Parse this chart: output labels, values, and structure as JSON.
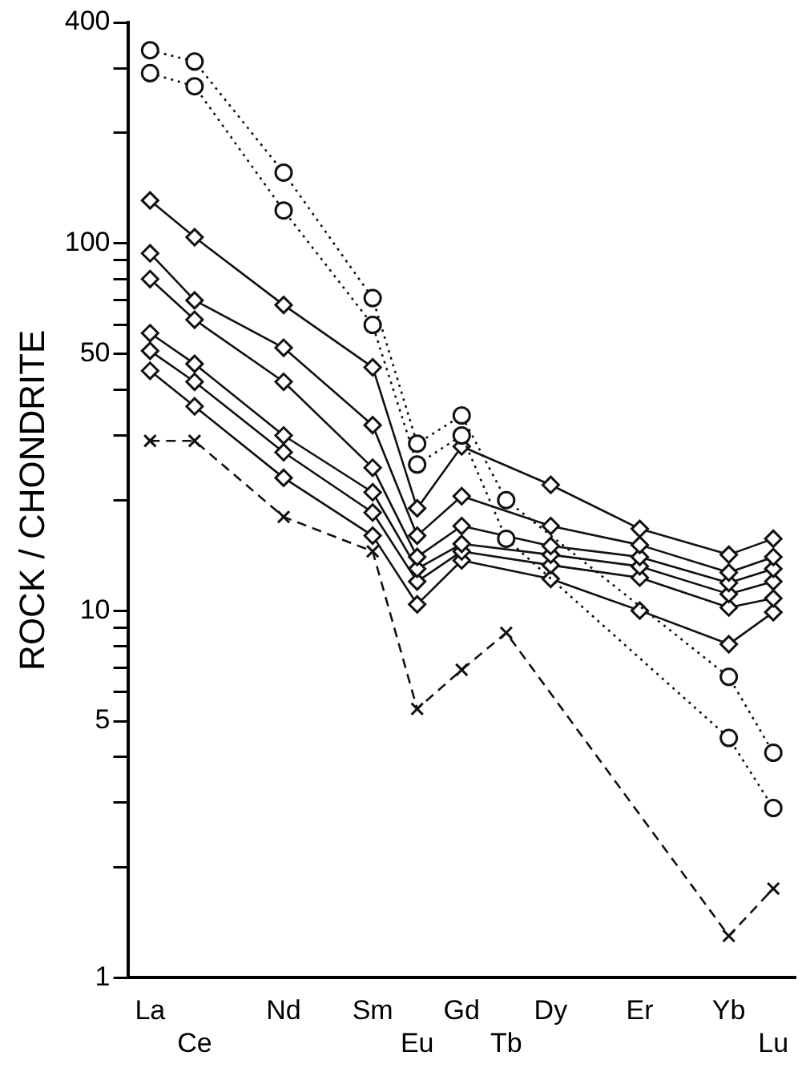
{
  "chart_data": {
    "type": "line",
    "ylabel": "ROCK / CHONDRITE",
    "log": "y",
    "grid": false,
    "legend": false,
    "categories": [
      "La",
      "Ce",
      null,
      "Nd",
      null,
      "Sm",
      "Eu",
      "Gd",
      "Tb",
      "Dy",
      null,
      "Er",
      null,
      "Yb",
      "Lu"
    ],
    "ylim": [
      1,
      400
    ],
    "yticks": [
      1,
      {
        "value": 2,
        "label": null
      },
      {
        "value": 3,
        "label": null
      },
      {
        "value": 4,
        "label": null
      },
      5,
      {
        "value": 6,
        "label": null
      },
      {
        "value": 7,
        "label": null
      },
      {
        "value": 8,
        "label": null
      },
      {
        "value": 9,
        "label": null
      },
      10,
      {
        "value": 20,
        "label": null
      },
      {
        "value": 30,
        "label": null
      },
      {
        "value": 40,
        "label": null
      },
      50,
      {
        "value": 60,
        "label": null
      },
      {
        "value": 70,
        "label": null
      },
      {
        "value": 80,
        "label": null
      },
      {
        "value": 90,
        "label": null
      },
      100,
      {
        "value": 200,
        "label": null
      },
      {
        "value": 300,
        "label": null
      },
      400
    ],
    "series": [
      {
        "color": "#111111",
        "marker": "circle",
        "line_style": "dotted",
        "values": [
          336,
          313,
          null,
          156,
          null,
          71,
          28.5,
          34,
          20,
          null,
          null,
          null,
          null,
          6.6,
          4.1
        ]
      },
      {
        "color": "#111111",
        "marker": "circle",
        "line_style": "dotted",
        "values": [
          291,
          268,
          null,
          123,
          null,
          60,
          25,
          30,
          15.7,
          null,
          null,
          null,
          null,
          4.5,
          2.9
        ]
      },
      {
        "color": "#111111",
        "marker": "diamond",
        "line_style": "solid",
        "values": [
          131,
          104,
          null,
          68,
          null,
          46,
          19,
          28,
          null,
          22,
          null,
          16.7,
          null,
          14.2,
          15.7
        ]
      },
      {
        "color": "#111111",
        "marker": "diamond",
        "line_style": "solid",
        "values": [
          94,
          70,
          null,
          52,
          null,
          32,
          16,
          20.5,
          null,
          17,
          null,
          15.1,
          null,
          12.7,
          14
        ]
      },
      {
        "color": "#111111",
        "marker": "diamond",
        "line_style": "solid",
        "values": [
          80,
          62,
          null,
          42,
          null,
          24.5,
          14,
          17,
          null,
          15,
          null,
          14,
          null,
          11.9,
          13
        ]
      },
      {
        "color": "#111111",
        "marker": "diamond",
        "line_style": "solid",
        "values": [
          57,
          47,
          null,
          30,
          null,
          21,
          13,
          15.2,
          null,
          14.2,
          null,
          13.2,
          null,
          11.1,
          12
        ]
      },
      {
        "color": "#111111",
        "marker": "diamond",
        "line_style": "solid",
        "values": [
          51,
          42,
          null,
          27,
          null,
          18.5,
          12,
          14.5,
          null,
          13.3,
          null,
          12.3,
          null,
          10.2,
          10.8
        ]
      },
      {
        "color": "#111111",
        "marker": "diamond",
        "line_style": "solid",
        "values": [
          45,
          36,
          null,
          23,
          null,
          16,
          10.4,
          13.7,
          null,
          12.2,
          null,
          10,
          null,
          8.1,
          9.9
        ]
      },
      {
        "color": "#111111",
        "marker": "cross",
        "line_style": "dashed",
        "values": [
          29,
          29,
          null,
          18,
          null,
          14.5,
          5.4,
          6.9,
          8.7,
          null,
          null,
          null,
          null,
          1.3,
          1.75
        ]
      }
    ]
  }
}
